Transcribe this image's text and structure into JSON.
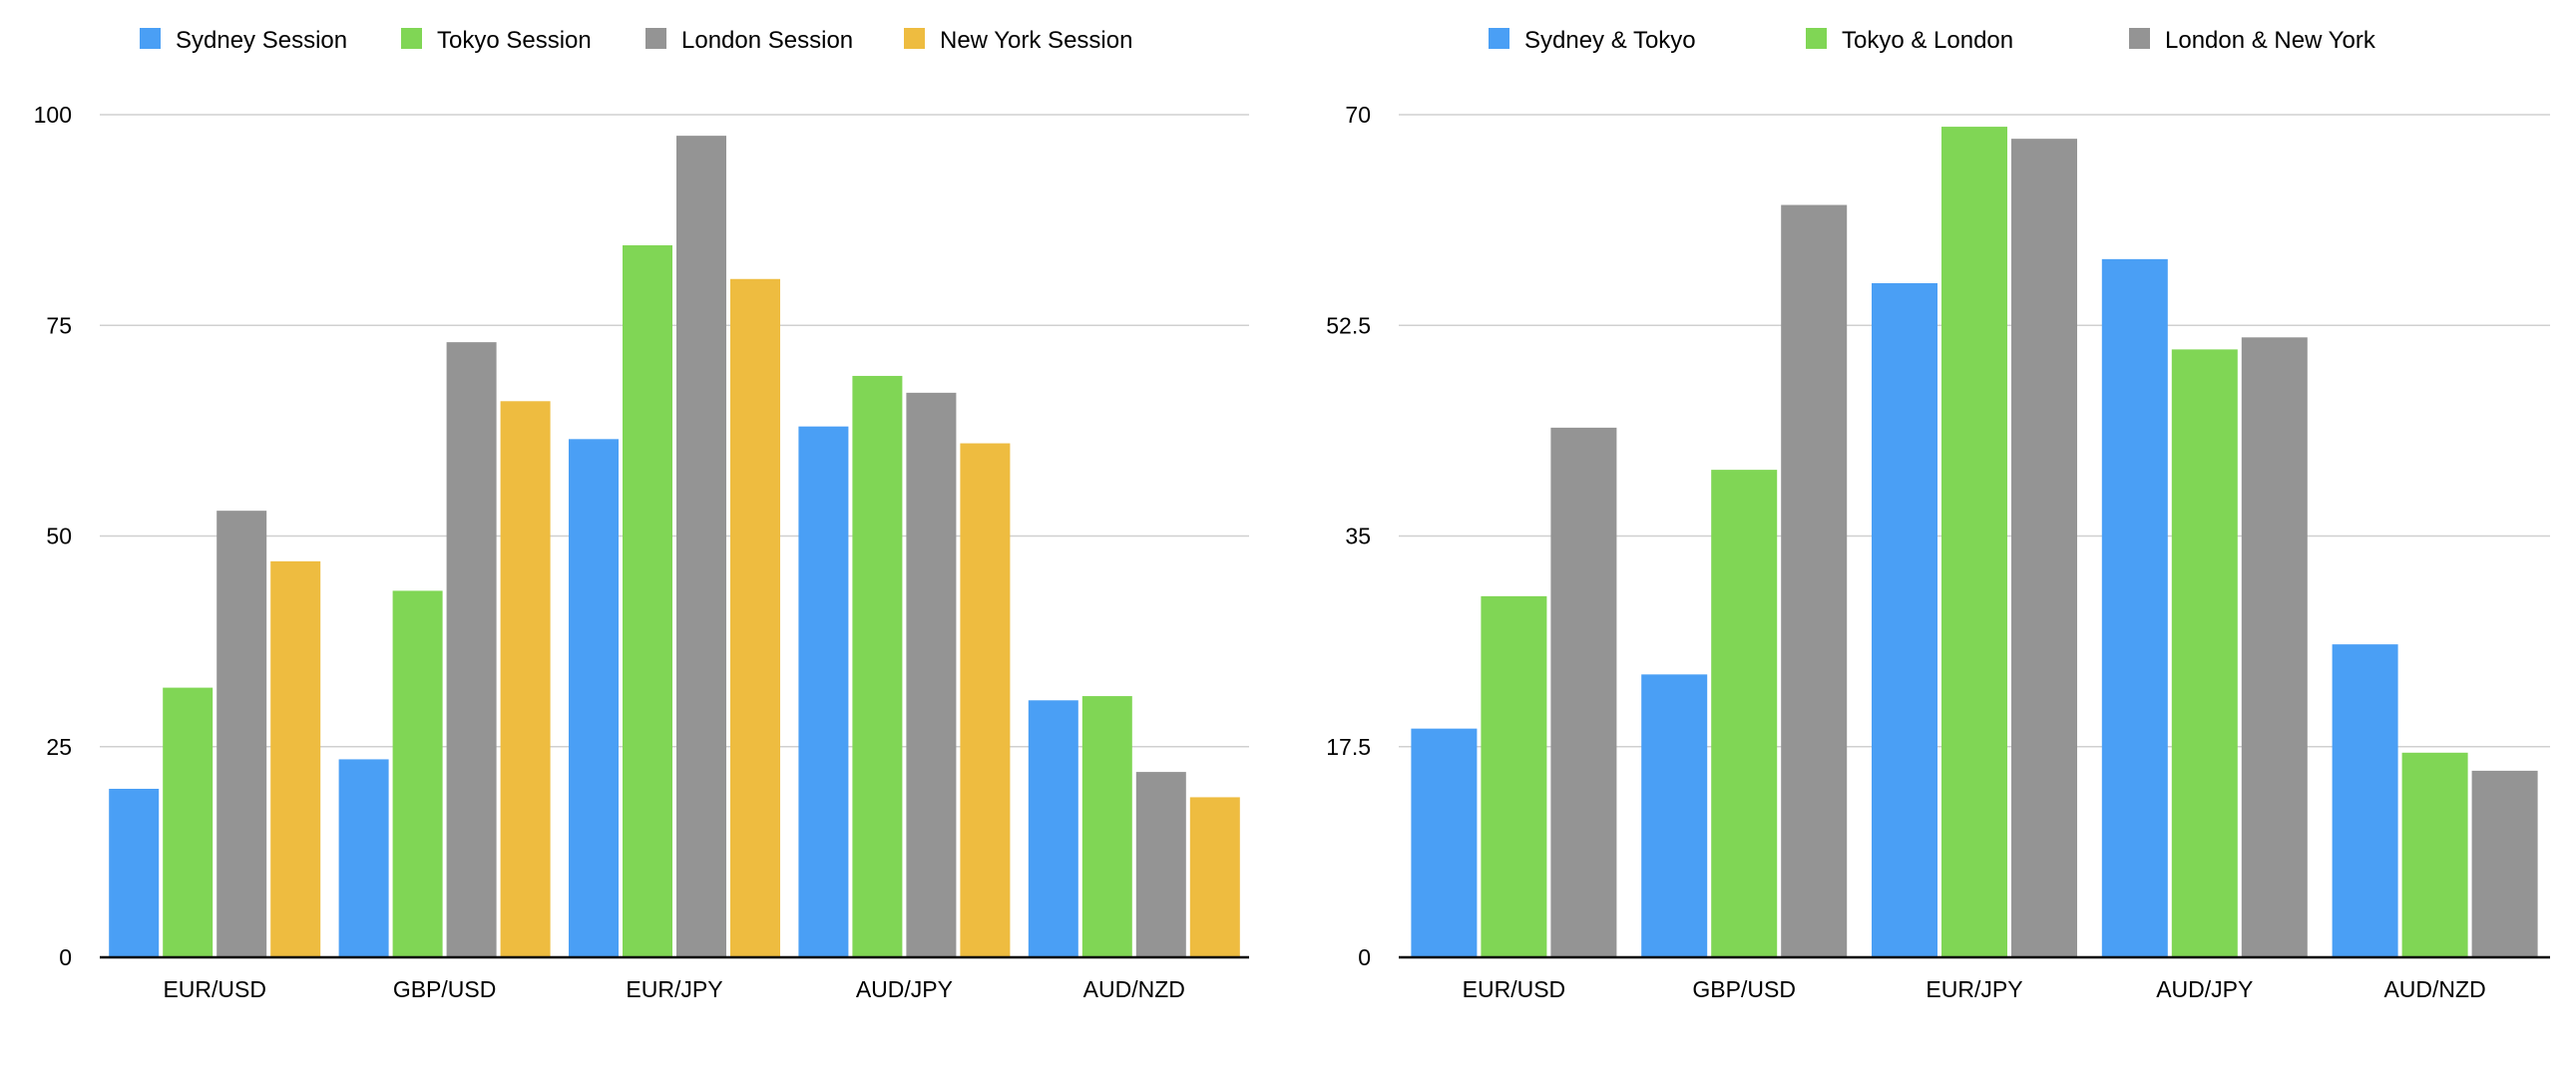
{
  "chart_data": [
    {
      "type": "bar",
      "title": "",
      "xlabel": "",
      "ylabel": "",
      "categories": [
        "EUR/USD",
        "GBP/USD",
        "EUR/JPY",
        "AUD/JPY",
        "AUD/NZD"
      ],
      "ylim": [
        0,
        100
      ],
      "yticks": [
        "0",
        "25",
        "50",
        "75",
        "100"
      ],
      "grid": true,
      "legend_position": "top-left",
      "series": [
        {
          "name": "Sydney Session",
          "color": "#4a9ff5",
          "values": [
            20,
            23.5,
            61.5,
            63,
            30.5
          ]
        },
        {
          "name": "Tokyo Session",
          "color": "#80d655",
          "values": [
            32,
            43.5,
            84.5,
            69,
            31
          ]
        },
        {
          "name": "London Session",
          "color": "#949494",
          "values": [
            53,
            73,
            97.5,
            67,
            22
          ]
        },
        {
          "name": "New York Session",
          "color": "#eebc40",
          "values": [
            47,
            66,
            80.5,
            61,
            19
          ]
        }
      ]
    },
    {
      "type": "bar",
      "title": "",
      "xlabel": "",
      "ylabel": "",
      "categories": [
        "EUR/USD",
        "GBP/USD",
        "EUR/JPY",
        "AUD/JPY",
        "AUD/NZD"
      ],
      "ylim": [
        0,
        70
      ],
      "yticks": [
        "0",
        "17.5",
        "35",
        "52.5",
        "70"
      ],
      "grid": true,
      "legend_position": "top-left",
      "series": [
        {
          "name": "Sydney & Tokyo",
          "color": "#4a9ff5",
          "values": [
            19,
            23.5,
            56,
            58,
            26
          ]
        },
        {
          "name": "Tokyo &  London",
          "color": "#80d655",
          "values": [
            30,
            40.5,
            69,
            50.5,
            17
          ]
        },
        {
          "name": "London & New York",
          "color": "#949494",
          "values": [
            44,
            62.5,
            68,
            51.5,
            15.5
          ]
        }
      ]
    }
  ]
}
